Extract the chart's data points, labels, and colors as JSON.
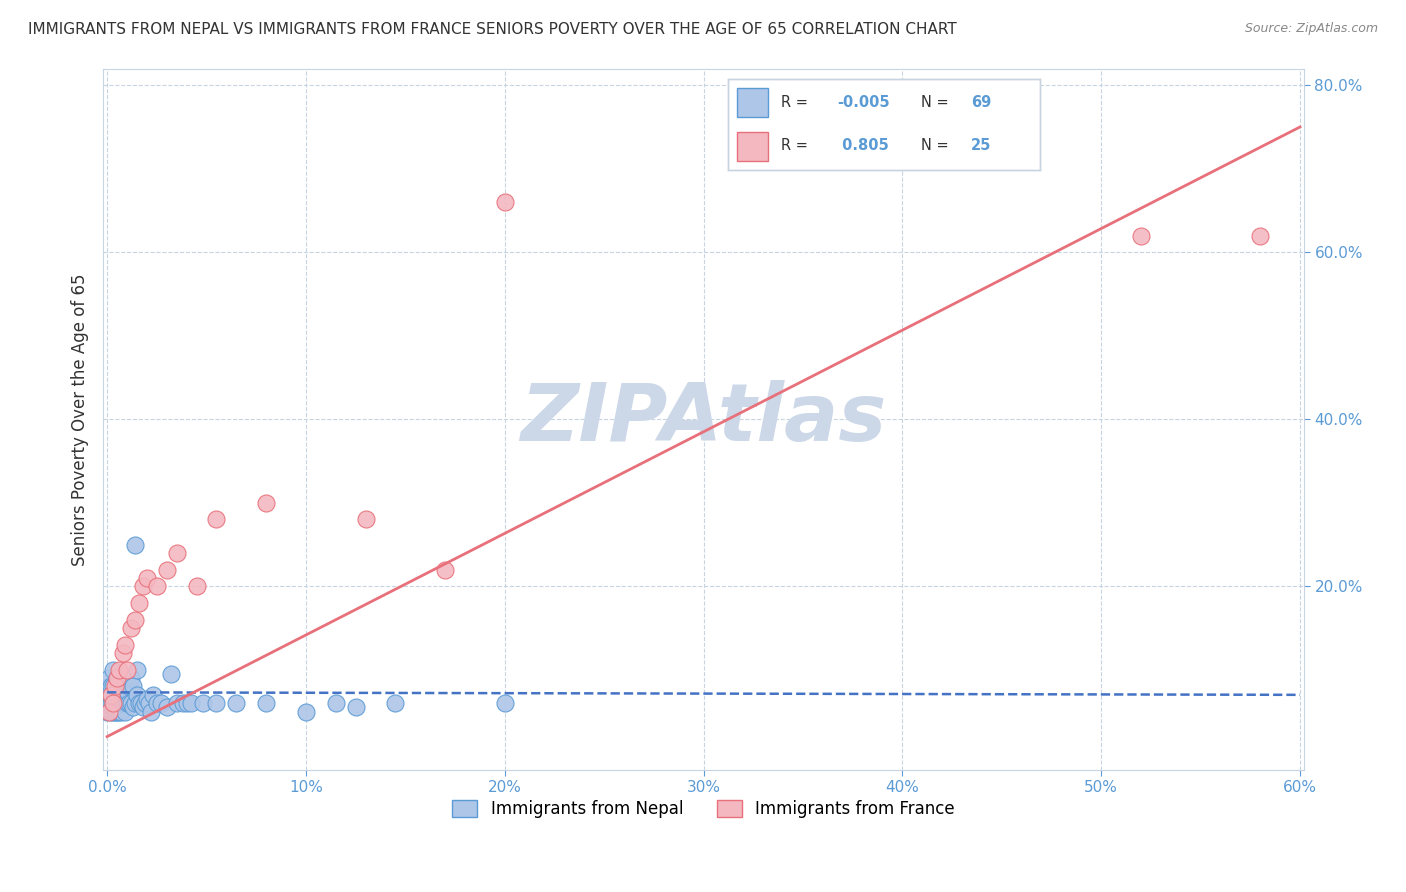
{
  "title": "IMMIGRANTS FROM NEPAL VS IMMIGRANTS FROM FRANCE SENIORS POVERTY OVER THE AGE OF 65 CORRELATION CHART",
  "source": "Source: ZipAtlas.com",
  "ylabel": "Seniors Poverty Over the Age of 65",
  "legend_nepal": "Immigrants from Nepal",
  "legend_france": "Immigrants from France",
  "nepal_R": -0.005,
  "nepal_N": 69,
  "france_R": 0.805,
  "france_N": 25,
  "xlim": [
    -0.002,
    0.602
  ],
  "ylim": [
    -0.02,
    0.82
  ],
  "xticks": [
    0.0,
    0.1,
    0.2,
    0.3,
    0.4,
    0.5,
    0.6
  ],
  "yticks": [
    0.2,
    0.4,
    0.6,
    0.8
  ],
  "nepal_color": "#aec6e8",
  "nepal_edge": "#5b9bd5",
  "france_color": "#f4b8c1",
  "france_edge": "#e8707a",
  "nepal_line_color": "#4472c4",
  "france_line_color": "#e8707a",
  "watermark": "ZIPAtlas",
  "watermark_color": "#ccd8e8",
  "tick_color": "#5b9bd5",
  "grid_color": "#c8d4e0",
  "nepal_x": [
    0.0,
    0.001,
    0.001,
    0.001,
    0.001,
    0.002,
    0.002,
    0.002,
    0.002,
    0.003,
    0.003,
    0.003,
    0.003,
    0.004,
    0.004,
    0.004,
    0.005,
    0.005,
    0.005,
    0.005,
    0.006,
    0.006,
    0.006,
    0.007,
    0.007,
    0.007,
    0.008,
    0.008,
    0.008,
    0.009,
    0.009,
    0.01,
    0.01,
    0.01,
    0.011,
    0.011,
    0.012,
    0.012,
    0.013,
    0.013,
    0.014,
    0.014,
    0.015,
    0.015,
    0.016,
    0.017,
    0.018,
    0.019,
    0.02,
    0.021,
    0.022,
    0.023,
    0.025,
    0.027,
    0.03,
    0.032,
    0.035,
    0.038,
    0.04,
    0.042,
    0.048,
    0.055,
    0.065,
    0.08,
    0.1,
    0.115,
    0.125,
    0.145,
    0.2
  ],
  "nepal_y": [
    0.05,
    0.06,
    0.07,
    0.08,
    0.09,
    0.05,
    0.06,
    0.07,
    0.08,
    0.05,
    0.06,
    0.08,
    0.1,
    0.05,
    0.06,
    0.07,
    0.05,
    0.06,
    0.07,
    0.09,
    0.05,
    0.065,
    0.08,
    0.05,
    0.06,
    0.075,
    0.06,
    0.07,
    0.08,
    0.05,
    0.07,
    0.06,
    0.075,
    0.085,
    0.06,
    0.08,
    0.06,
    0.09,
    0.055,
    0.08,
    0.25,
    0.06,
    0.07,
    0.1,
    0.06,
    0.06,
    0.055,
    0.06,
    0.065,
    0.06,
    0.05,
    0.07,
    0.06,
    0.06,
    0.055,
    0.095,
    0.06,
    0.06,
    0.06,
    0.06,
    0.06,
    0.06,
    0.06,
    0.06,
    0.05,
    0.06,
    0.055,
    0.06,
    0.06
  ],
  "france_x": [
    0.001,
    0.002,
    0.003,
    0.004,
    0.005,
    0.006,
    0.008,
    0.009,
    0.01,
    0.012,
    0.014,
    0.016,
    0.018,
    0.02,
    0.025,
    0.03,
    0.035,
    0.045,
    0.055,
    0.08,
    0.13,
    0.17,
    0.2,
    0.52,
    0.58
  ],
  "france_y": [
    0.05,
    0.07,
    0.06,
    0.08,
    0.09,
    0.1,
    0.12,
    0.13,
    0.1,
    0.15,
    0.16,
    0.18,
    0.2,
    0.21,
    0.2,
    0.22,
    0.24,
    0.2,
    0.28,
    0.3,
    0.28,
    0.22,
    0.66,
    0.62,
    0.62
  ],
  "nepal_line_x": [
    0.0,
    0.6
  ],
  "nepal_line_y": [
    0.073,
    0.07
  ],
  "france_line_x": [
    0.0,
    0.6
  ],
  "france_line_y": [
    0.02,
    0.75
  ]
}
